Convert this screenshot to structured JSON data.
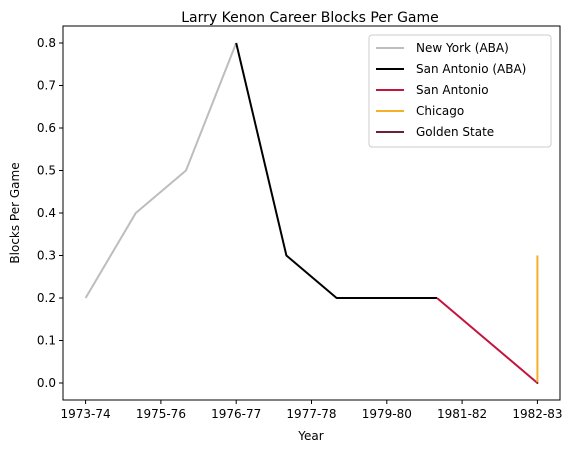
{
  "chart_data": {
    "type": "line",
    "title": "Larry Kenon Career Blocks Per Game",
    "xlabel": "Year",
    "ylabel": "Blocks Per Game",
    "xlim": [
      -0.45,
      9.45
    ],
    "ylim": [
      -0.04,
      0.84
    ],
    "x_ticks": [
      {
        "pos": 0,
        "label": "1973-74"
      },
      {
        "pos": 1.5,
        "label": "1975-76"
      },
      {
        "pos": 3,
        "label": "1976-77"
      },
      {
        "pos": 4.5,
        "label": "1977-78"
      },
      {
        "pos": 6,
        "label": "1979-80"
      },
      {
        "pos": 7.5,
        "label": "1981-82"
      },
      {
        "pos": 9,
        "label": "1982-83"
      }
    ],
    "y_ticks": [
      {
        "value": 0.0,
        "label": "0.0"
      },
      {
        "value": 0.1,
        "label": "0.1"
      },
      {
        "value": 0.2,
        "label": "0.2"
      },
      {
        "value": 0.3,
        "label": "0.3"
      },
      {
        "value": 0.4,
        "label": "0.4"
      },
      {
        "value": 0.5,
        "label": "0.5"
      },
      {
        "value": 0.6,
        "label": "0.6"
      },
      {
        "value": 0.7,
        "label": "0.7"
      },
      {
        "value": 0.8,
        "label": "0.8"
      }
    ],
    "grid": false,
    "legend_position": "top-right",
    "series": [
      {
        "name": "New York (ABA)",
        "color": "#bdbdbd",
        "x": [
          0,
          1,
          2,
          3
        ],
        "y": [
          0.2,
          0.4,
          0.5,
          0.8
        ]
      },
      {
        "name": "San Antonio (ABA)",
        "color": "#000000",
        "x": [
          3,
          4,
          5,
          6,
          7
        ],
        "y": [
          0.8,
          0.3,
          0.2,
          0.2,
          0.2
        ]
      },
      {
        "name": "San Antonio",
        "color": "#c4153e",
        "x": [
          7,
          9
        ],
        "y": [
          0.2,
          0.0
        ]
      },
      {
        "name": "Chicago",
        "color": "#f5b025",
        "x": [
          9,
          9
        ],
        "y": [
          0.0,
          0.3
        ]
      },
      {
        "name": "Golden State",
        "color": "#6b1f3a",
        "x": [
          9
        ],
        "y": [
          0.0
        ]
      }
    ]
  }
}
